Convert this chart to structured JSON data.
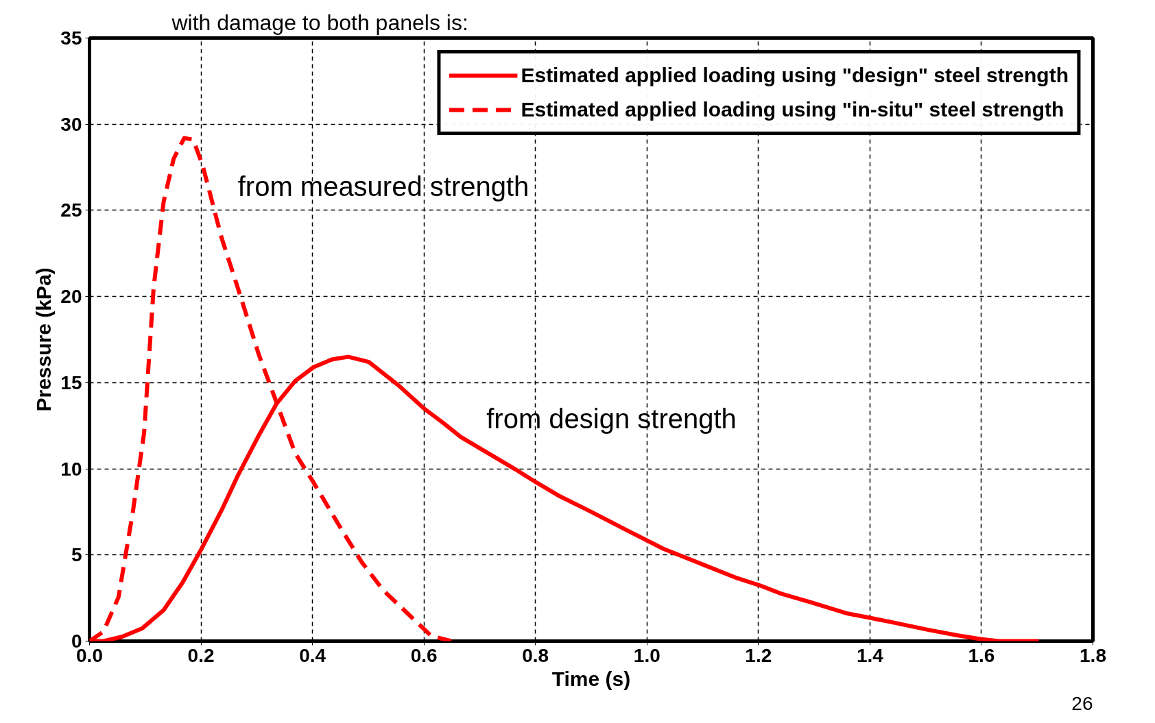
{
  "chart_data": {
    "type": "line",
    "xlabel": "Time (s)",
    "ylabel": "Pressure (kPa)",
    "xlim": [
      0,
      1.8
    ],
    "ylim": [
      0,
      35
    ],
    "xticks": [
      {
        "value": 0,
        "label": "0.0"
      },
      {
        "value": 0.2,
        "label": "0.2"
      },
      {
        "value": 0.4,
        "label": "0.4"
      },
      {
        "value": 0.6,
        "label": "0.6"
      },
      {
        "value": 0.8,
        "label": "0.8"
      },
      {
        "value": 1.0,
        "label": "1.0"
      },
      {
        "value": 1.2,
        "label": "1.2"
      },
      {
        "value": 1.4,
        "label": "1.4"
      },
      {
        "value": 1.6,
        "label": "1.6"
      },
      {
        "value": 1.8,
        "label": "1.8"
      }
    ],
    "yticks": [
      0,
      5,
      10,
      15,
      20,
      25,
      30,
      35
    ],
    "grid": true,
    "legend": "top right",
    "series": [
      {
        "name": "Estimated applied loading using \"design\" steel strength",
        "color": "#ff0000",
        "line_style": "solid",
        "x": [
          0,
          0.025,
          0.058,
          0.095,
          0.133,
          0.167,
          0.2,
          0.237,
          0.266,
          0.303,
          0.336,
          0.369,
          0.402,
          0.435,
          0.464,
          0.501,
          0.554,
          0.6,
          0.633,
          0.666,
          0.765,
          0.802,
          0.844,
          0.897,
          0.963,
          1.03,
          1.096,
          1.162,
          1.201,
          1.241,
          1.294,
          1.36,
          1.4,
          1.439,
          1.505,
          1.558,
          1.598,
          1.631,
          1.703
        ],
        "values": [
          0,
          0,
          0.25,
          0.75,
          1.8,
          3.4,
          5.3,
          7.6,
          9.6,
          11.9,
          13.8,
          15.1,
          15.9,
          16.35,
          16.5,
          16.2,
          14.85,
          13.5,
          12.7,
          11.85,
          9.95,
          9.2,
          8.4,
          7.55,
          6.45,
          5.35,
          4.5,
          3.65,
          3.25,
          2.75,
          2.25,
          1.6,
          1.35,
          1.1,
          0.65,
          0.33,
          0.12,
          0,
          0
        ]
      },
      {
        "name": "Estimated applied loading using \"in-situ\" steel strength",
        "color": "#ff0000",
        "line_style": "dashed",
        "x": [
          0,
          0.025,
          0.052,
          0.078,
          0.098,
          0.115,
          0.133,
          0.151,
          0.17,
          0.186,
          0.203,
          0.237,
          0.27,
          0.303,
          0.336,
          0.369,
          0.402,
          0.448,
          0.488,
          0.527,
          0.574,
          0.613,
          0.649
        ],
        "values": [
          0,
          0.55,
          2.55,
          7.55,
          12.1,
          20.5,
          25.5,
          28,
          29.2,
          29.1,
          27.6,
          23.4,
          20.1,
          16.7,
          13.8,
          10.9,
          9.2,
          6.7,
          4.6,
          2.95,
          1.5,
          0.3,
          0
        ]
      }
    ],
    "annotations": [
      "from measured strength",
      "from design strength",
      "with damage to both panels is:",
      "26"
    ]
  }
}
